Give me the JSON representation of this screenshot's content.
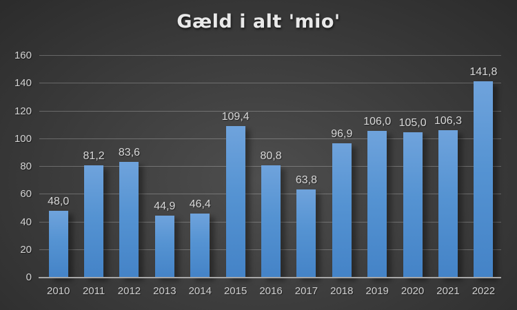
{
  "title": "Gæld i alt 'mio'",
  "colors": {
    "background_center": "#4e4e4e",
    "background_edge": "#262626",
    "bar_top": "#6fa3dc",
    "bar_bottom": "#4483c7",
    "gridline": "rgba(255,255,255,0.25)",
    "axis_line": "#a8a8a8",
    "text": "#d9d9d9",
    "title_text": "#e9e9e9"
  },
  "chart_data": {
    "type": "bar",
    "title": "Gæld i alt 'mio'",
    "categories": [
      "2010",
      "2011",
      "2012",
      "2013",
      "2014",
      "2015",
      "2016",
      "2017",
      "2018",
      "2019",
      "2020",
      "2021",
      "2022"
    ],
    "values": [
      48.0,
      81.2,
      83.6,
      44.9,
      46.4,
      109.4,
      80.8,
      63.8,
      96.9,
      106.0,
      105.0,
      106.3,
      141.8
    ],
    "data_labels": [
      "48,0",
      "81,2",
      "83,6",
      "44,9",
      "46,4",
      "109,4",
      "80,8",
      "63,8",
      "96,9",
      "106,0",
      "105,0",
      "106,3",
      "141,8"
    ],
    "xlabel": "",
    "ylabel": "",
    "ylim": [
      0,
      160
    ],
    "yticks": [
      0,
      20,
      40,
      60,
      80,
      100,
      120,
      140,
      160
    ],
    "ytick_labels": [
      "0",
      "20",
      "40",
      "60",
      "80",
      "100",
      "120",
      "140",
      "160"
    ],
    "grid": true,
    "legend": "none",
    "decimal_separator": ","
  }
}
